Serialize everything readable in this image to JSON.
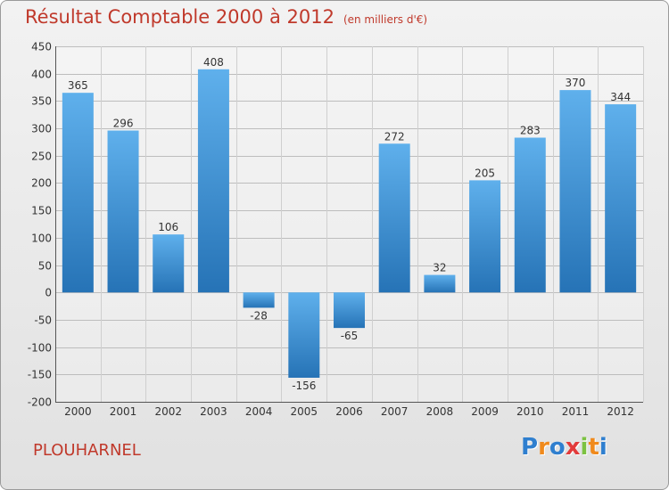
{
  "header": {
    "title": "Résultat Comptable 2000 à 2012",
    "subtitle": "(en milliers d'€)"
  },
  "footer": {
    "location": "PLOUHARNEL",
    "brand": [
      "P",
      "r",
      "o",
      "x",
      "i",
      "t",
      "i"
    ],
    "brand_colors": [
      "#2f7fcf",
      "#f08a1c",
      "#2f7fcf",
      "#e23b3b",
      "#7cc242",
      "#f08a1c",
      "#2f7fcf"
    ]
  },
  "colors": {
    "bar_light": "#5fb0ec",
    "bar_dark": "#2673b6",
    "title": "#c0392b"
  },
  "chart_data": {
    "type": "bar",
    "title": "Résultat Comptable 2000 à 2012",
    "subtitle": "(en milliers d'€)",
    "categories": [
      "2000",
      "2001",
      "2002",
      "2003",
      "2004",
      "2005",
      "2006",
      "2007",
      "2008",
      "2009",
      "2010",
      "2011",
      "2012"
    ],
    "values": [
      365,
      296,
      106,
      408,
      -28,
      -156,
      -65,
      272,
      32,
      205,
      283,
      370,
      344
    ],
    "ylim": [
      -200,
      450
    ],
    "yticks": [
      -200,
      -150,
      -100,
      -50,
      0,
      50,
      100,
      150,
      200,
      250,
      300,
      350,
      400,
      450
    ],
    "grid": "horizontal",
    "legend": "none"
  }
}
